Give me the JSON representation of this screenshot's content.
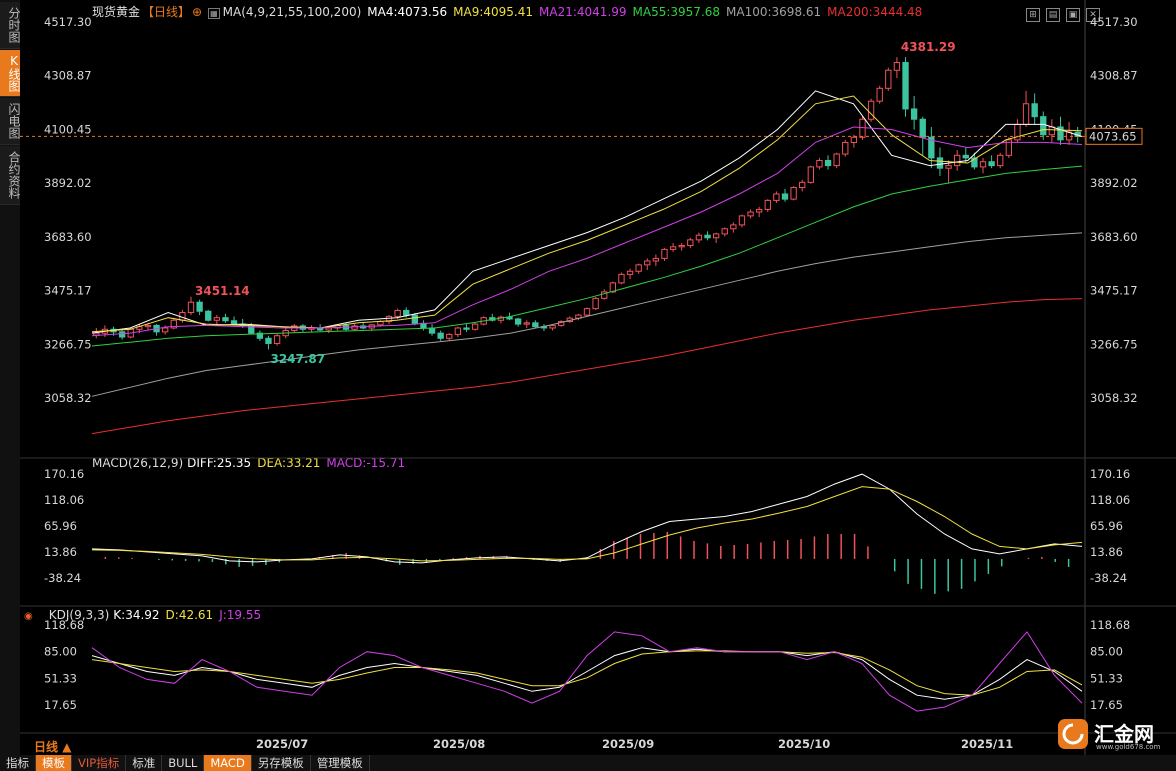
{
  "instrument": "现货黄金",
  "period_tag": "【日线】",
  "sidebar": [
    {
      "label": "分时图",
      "active": false
    },
    {
      "label": "K线图",
      "active": true
    },
    {
      "label": "闪电图",
      "active": false
    },
    {
      "label": "合约资料",
      "active": false
    }
  ],
  "main_legend": {
    "ma_title": "MA(4,9,21,55,100,200)",
    "ma4": "MA4:4073.56",
    "ma9": "MA9:4095.41",
    "ma21": "MA21:4041.99",
    "ma55": "MA55:3957.68",
    "ma100": "MA100:3698.61",
    "ma200": "MA200:3444.48"
  },
  "macd_legend": {
    "title": "MACD(26,12,9)",
    "diff": "DIFF:25.35",
    "dea": "DEA:33.21",
    "macd": "MACD:-15.71"
  },
  "kdj_legend": {
    "title": "KDJ(9,3,3)",
    "k": "K:34.92",
    "d": "D:42.61",
    "j": "J:19.55"
  },
  "price_ticks": [
    "4517.30",
    "4308.87",
    "4100.45",
    "3892.02",
    "3683.60",
    "3475.17",
    "3266.75",
    "3058.32"
  ],
  "current_price": "4073.65",
  "macd_ticks": [
    "170.16",
    "118.06",
    "65.96",
    "13.86",
    "-38.24"
  ],
  "kdj_ticks": [
    "118.68",
    "85.00",
    "51.33",
    "17.65"
  ],
  "x_ticks": [
    "2025/07",
    "2025/08",
    "2025/09",
    "2025/10",
    "2025/11"
  ],
  "annotations": {
    "high": "4381.29",
    "low": "3247.87",
    "local_high": "3451.14"
  },
  "bottom_tabs": [
    {
      "label": "指标",
      "active": false,
      "vip": false
    },
    {
      "label": "模板",
      "active": true,
      "vip": false
    },
    {
      "label": "VIP指标",
      "active": false,
      "vip": true
    },
    {
      "label": "标准",
      "active": false,
      "vip": false
    },
    {
      "label": "BULL",
      "active": false,
      "vip": false
    },
    {
      "label": "MACD",
      "active": true,
      "vip": false
    },
    {
      "label": "另存模板",
      "active": false,
      "vip": false
    },
    {
      "label": "管理模板",
      "active": false,
      "vip": false
    }
  ],
  "period_label": "日线",
  "logo": {
    "name": "汇金网",
    "url": "www.gold678.com"
  },
  "colors": {
    "up": "#f0525a",
    "down": "#3cc4a0",
    "ma4": "#ffffff",
    "ma9": "#f0e040",
    "ma21": "#d040e8",
    "ma55": "#30d040",
    "ma100": "#a0a0a0",
    "ma200": "#e83030"
  },
  "chart_data": {
    "type": "candlestick",
    "y_range": [
      3000,
      4530
    ],
    "candles_ohlc": [
      [
        3302,
        3330,
        3290,
        3310
      ],
      [
        3310,
        3340,
        3295,
        3325
      ],
      [
        3325,
        3335,
        3300,
        3315
      ],
      [
        3315,
        3320,
        3285,
        3295
      ],
      [
        3295,
        3330,
        3290,
        3325
      ],
      [
        3325,
        3345,
        3310,
        3335
      ],
      [
        3335,
        3350,
        3320,
        3340
      ],
      [
        3340,
        3345,
        3300,
        3315
      ],
      [
        3315,
        3340,
        3305,
        3330
      ],
      [
        3330,
        3370,
        3325,
        3360
      ],
      [
        3360,
        3400,
        3350,
        3390
      ],
      [
        3390,
        3451,
        3380,
        3430
      ],
      [
        3430,
        3440,
        3380,
        3395
      ],
      [
        3395,
        3400,
        3355,
        3360
      ],
      [
        3360,
        3380,
        3345,
        3370
      ],
      [
        3370,
        3385,
        3350,
        3358
      ],
      [
        3358,
        3375,
        3340,
        3345
      ],
      [
        3345,
        3365,
        3330,
        3340
      ],
      [
        3340,
        3350,
        3305,
        3310
      ],
      [
        3310,
        3320,
        3280,
        3290
      ],
      [
        3290,
        3300,
        3247,
        3270
      ],
      [
        3270,
        3310,
        3262,
        3300
      ],
      [
        3300,
        3330,
        3290,
        3320
      ],
      [
        3320,
        3345,
        3312,
        3338
      ],
      [
        3338,
        3345,
        3315,
        3325
      ],
      [
        3325,
        3340,
        3315,
        3330
      ],
      [
        3330,
        3345,
        3318,
        3322
      ],
      [
        3322,
        3338,
        3310,
        3330
      ],
      [
        3330,
        3345,
        3320,
        3340
      ],
      [
        3340,
        3350,
        3320,
        3325
      ],
      [
        3325,
        3345,
        3318,
        3338
      ],
      [
        3338,
        3352,
        3325,
        3330
      ],
      [
        3330,
        3345,
        3318,
        3342
      ],
      [
        3342,
        3360,
        3335,
        3355
      ],
      [
        3355,
        3380,
        3345,
        3375
      ],
      [
        3375,
        3405,
        3365,
        3398
      ],
      [
        3398,
        3410,
        3370,
        3380
      ],
      [
        3380,
        3388,
        3340,
        3348
      ],
      [
        3348,
        3360,
        3320,
        3330
      ],
      [
        3330,
        3345,
        3300,
        3310
      ],
      [
        3310,
        3320,
        3280,
        3290
      ],
      [
        3290,
        3310,
        3280,
        3305
      ],
      [
        3305,
        3335,
        3295,
        3330
      ],
      [
        3330,
        3345,
        3315,
        3325
      ],
      [
        3325,
        3350,
        3320,
        3345
      ],
      [
        3345,
        3375,
        3340,
        3370
      ],
      [
        3370,
        3385,
        3355,
        3360
      ],
      [
        3360,
        3378,
        3348,
        3372
      ],
      [
        3372,
        3390,
        3360,
        3365
      ],
      [
        3365,
        3370,
        3335,
        3345
      ],
      [
        3345,
        3360,
        3330,
        3350
      ],
      [
        3350,
        3360,
        3330,
        3335
      ],
      [
        3335,
        3345,
        3318,
        3330
      ],
      [
        3330,
        3345,
        3320,
        3340
      ],
      [
        3340,
        3360,
        3335,
        3355
      ],
      [
        3355,
        3375,
        3350,
        3368
      ],
      [
        3368,
        3385,
        3360,
        3380
      ],
      [
        3380,
        3410,
        3375,
        3405
      ],
      [
        3405,
        3450,
        3400,
        3445
      ],
      [
        3445,
        3480,
        3440,
        3470
      ],
      [
        3470,
        3510,
        3465,
        3505
      ],
      [
        3505,
        3545,
        3500,
        3538
      ],
      [
        3538,
        3560,
        3520,
        3550
      ],
      [
        3550,
        3580,
        3540,
        3575
      ],
      [
        3575,
        3600,
        3555,
        3590
      ],
      [
        3590,
        3615,
        3570,
        3600
      ],
      [
        3600,
        3640,
        3590,
        3635
      ],
      [
        3635,
        3660,
        3625,
        3645
      ],
      [
        3645,
        3660,
        3630,
        3650
      ],
      [
        3650,
        3680,
        3640,
        3672
      ],
      [
        3672,
        3700,
        3660,
        3690
      ],
      [
        3690,
        3705,
        3670,
        3680
      ],
      [
        3680,
        3700,
        3660,
        3695
      ],
      [
        3695,
        3720,
        3685,
        3715
      ],
      [
        3715,
        3740,
        3700,
        3730
      ],
      [
        3730,
        3770,
        3720,
        3765
      ],
      [
        3765,
        3790,
        3755,
        3780
      ],
      [
        3780,
        3800,
        3760,
        3790
      ],
      [
        3790,
        3830,
        3780,
        3825
      ],
      [
        3825,
        3860,
        3815,
        3850
      ],
      [
        3850,
        3870,
        3820,
        3830
      ],
      [
        3830,
        3880,
        3825,
        3875
      ],
      [
        3875,
        3905,
        3860,
        3895
      ],
      [
        3895,
        3960,
        3890,
        3955
      ],
      [
        3955,
        3990,
        3945,
        3980
      ],
      [
        3980,
        4000,
        3945,
        3960
      ],
      [
        3960,
        4010,
        3950,
        4005
      ],
      [
        4005,
        4060,
        3995,
        4050
      ],
      [
        4050,
        4080,
        4030,
        4070
      ],
      [
        4070,
        4150,
        4060,
        4140
      ],
      [
        4140,
        4220,
        4130,
        4210
      ],
      [
        4210,
        4270,
        4200,
        4260
      ],
      [
        4260,
        4340,
        4250,
        4330
      ],
      [
        4330,
        4381,
        4300,
        4360
      ],
      [
        4360,
        4381,
        4150,
        4180
      ],
      [
        4180,
        4230,
        4100,
        4140
      ],
      [
        4140,
        4150,
        4000,
        4070
      ],
      [
        4070,
        4110,
        3950,
        3990
      ],
      [
        3990,
        4030,
        3920,
        3950
      ],
      [
        3950,
        3980,
        3890,
        3960
      ],
      [
        3960,
        4020,
        3940,
        4000
      ],
      [
        4000,
        4030,
        3970,
        3990
      ],
      [
        3990,
        4010,
        3945,
        3955
      ],
      [
        3955,
        3990,
        3930,
        3975
      ],
      [
        3975,
        4000,
        3950,
        3960
      ],
      [
        3960,
        4010,
        3950,
        4000
      ],
      [
        4000,
        4070,
        3990,
        4060
      ],
      [
        4060,
        4140,
        4050,
        4120
      ],
      [
        4120,
        4250,
        4110,
        4200
      ],
      [
        4200,
        4240,
        4120,
        4150
      ],
      [
        4150,
        4170,
        4060,
        4080
      ],
      [
        4080,
        4140,
        4050,
        4110
      ],
      [
        4110,
        4150,
        4040,
        4060
      ],
      [
        4060,
        4130,
        4040,
        4090
      ],
      [
        4090,
        4110,
        4050,
        4073
      ]
    ],
    "ma_series": [
      {
        "name": "MA4",
        "values": [
          3310,
          3330,
          3390,
          3340,
          3345,
          3335,
          3330,
          3360,
          3370,
          3400,
          3550,
          3600,
          3650,
          3700,
          3760,
          3830,
          3900,
          3990,
          4100,
          4250,
          4200,
          4000,
          3960,
          3980,
          4120,
          4120,
          4073
        ]
      },
      {
        "name": "MA9",
        "values": [
          3315,
          3325,
          3370,
          3345,
          3340,
          3335,
          3330,
          3350,
          3360,
          3380,
          3500,
          3560,
          3620,
          3670,
          3730,
          3790,
          3860,
          3950,
          4060,
          4200,
          4230,
          4080,
          3980,
          3970,
          4060,
          4100,
          4095
        ]
      },
      {
        "name": "MA21",
        "values": [
          3300,
          3310,
          3335,
          3340,
          3335,
          3330,
          3330,
          3335,
          3340,
          3350,
          3420,
          3480,
          3550,
          3600,
          3660,
          3720,
          3780,
          3850,
          3930,
          4050,
          4110,
          4100,
          4060,
          4030,
          4050,
          4050,
          4042
        ]
      },
      {
        "name": "MA55",
        "values": [
          3260,
          3275,
          3290,
          3300,
          3305,
          3310,
          3315,
          3320,
          3325,
          3330,
          3350,
          3375,
          3410,
          3445,
          3485,
          3525,
          3570,
          3620,
          3680,
          3740,
          3800,
          3850,
          3880,
          3905,
          3930,
          3945,
          3958
        ]
      },
      {
        "name": "MA100",
        "values": [
          3065,
          3100,
          3135,
          3165,
          3185,
          3205,
          3225,
          3245,
          3260,
          3275,
          3290,
          3310,
          3340,
          3375,
          3410,
          3445,
          3480,
          3515,
          3550,
          3580,
          3605,
          3625,
          3645,
          3665,
          3680,
          3690,
          3699
        ]
      },
      {
        "name": "MA200",
        "values": [
          2920,
          2945,
          2970,
          2990,
          3010,
          3025,
          3040,
          3055,
          3070,
          3085,
          3100,
          3120,
          3145,
          3170,
          3195,
          3220,
          3250,
          3280,
          3310,
          3335,
          3360,
          3380,
          3400,
          3415,
          3430,
          3440,
          3444
        ]
      }
    ],
    "macd": {
      "y_range": [
        -60,
        185
      ],
      "diff": [
        20,
        18,
        14,
        10,
        6,
        -4,
        -6,
        -2,
        0,
        8,
        4,
        -6,
        -8,
        -2,
        2,
        4,
        0,
        -4,
        2,
        30,
        55,
        75,
        80,
        85,
        95,
        110,
        125,
        150,
        170,
        140,
        90,
        50,
        20,
        10,
        20,
        30,
        25
      ],
      "dea": [
        18,
        17,
        15,
        12,
        9,
        4,
        0,
        -2,
        -2,
        2,
        3,
        0,
        -4,
        -3,
        -1,
        1,
        1,
        -1,
        0,
        12,
        30,
        48,
        62,
        72,
        80,
        92,
        105,
        125,
        145,
        140,
        115,
        85,
        50,
        25,
        20,
        28,
        33
      ],
      "macd": [
        4,
        2,
        -2,
        -4,
        -6,
        -16,
        -12,
        -2,
        4,
        12,
        2,
        -12,
        -8,
        2,
        6,
        6,
        -2,
        -6,
        4,
        36,
        50,
        54,
        36,
        26,
        30,
        36,
        40,
        50,
        50,
        0,
        -50,
        -70,
        -60,
        -30,
        0,
        4,
        -16
      ]
    },
    "kdj": {
      "y_range": [
        5,
        125
      ],
      "k": [
        80,
        70,
        60,
        55,
        65,
        60,
        50,
        45,
        40,
        55,
        65,
        70,
        65,
        60,
        55,
        45,
        35,
        40,
        60,
        80,
        90,
        85,
        88,
        85,
        85,
        85,
        80,
        85,
        75,
        50,
        30,
        25,
        30,
        50,
        75,
        60,
        35
      ],
      "d": [
        75,
        70,
        65,
        60,
        62,
        60,
        55,
        50,
        45,
        50,
        58,
        65,
        65,
        62,
        58,
        50,
        42,
        42,
        52,
        70,
        82,
        85,
        86,
        86,
        85,
        85,
        83,
        84,
        78,
        62,
        42,
        32,
        30,
        40,
        60,
        62,
        43
      ],
      "j": [
        90,
        65,
        50,
        45,
        75,
        60,
        40,
        35,
        30,
        65,
        85,
        80,
        65,
        55,
        45,
        35,
        20,
        35,
        80,
        110,
        105,
        85,
        90,
        85,
        85,
        85,
        75,
        85,
        70,
        30,
        10,
        15,
        30,
        70,
        110,
        55,
        20
      ]
    }
  }
}
